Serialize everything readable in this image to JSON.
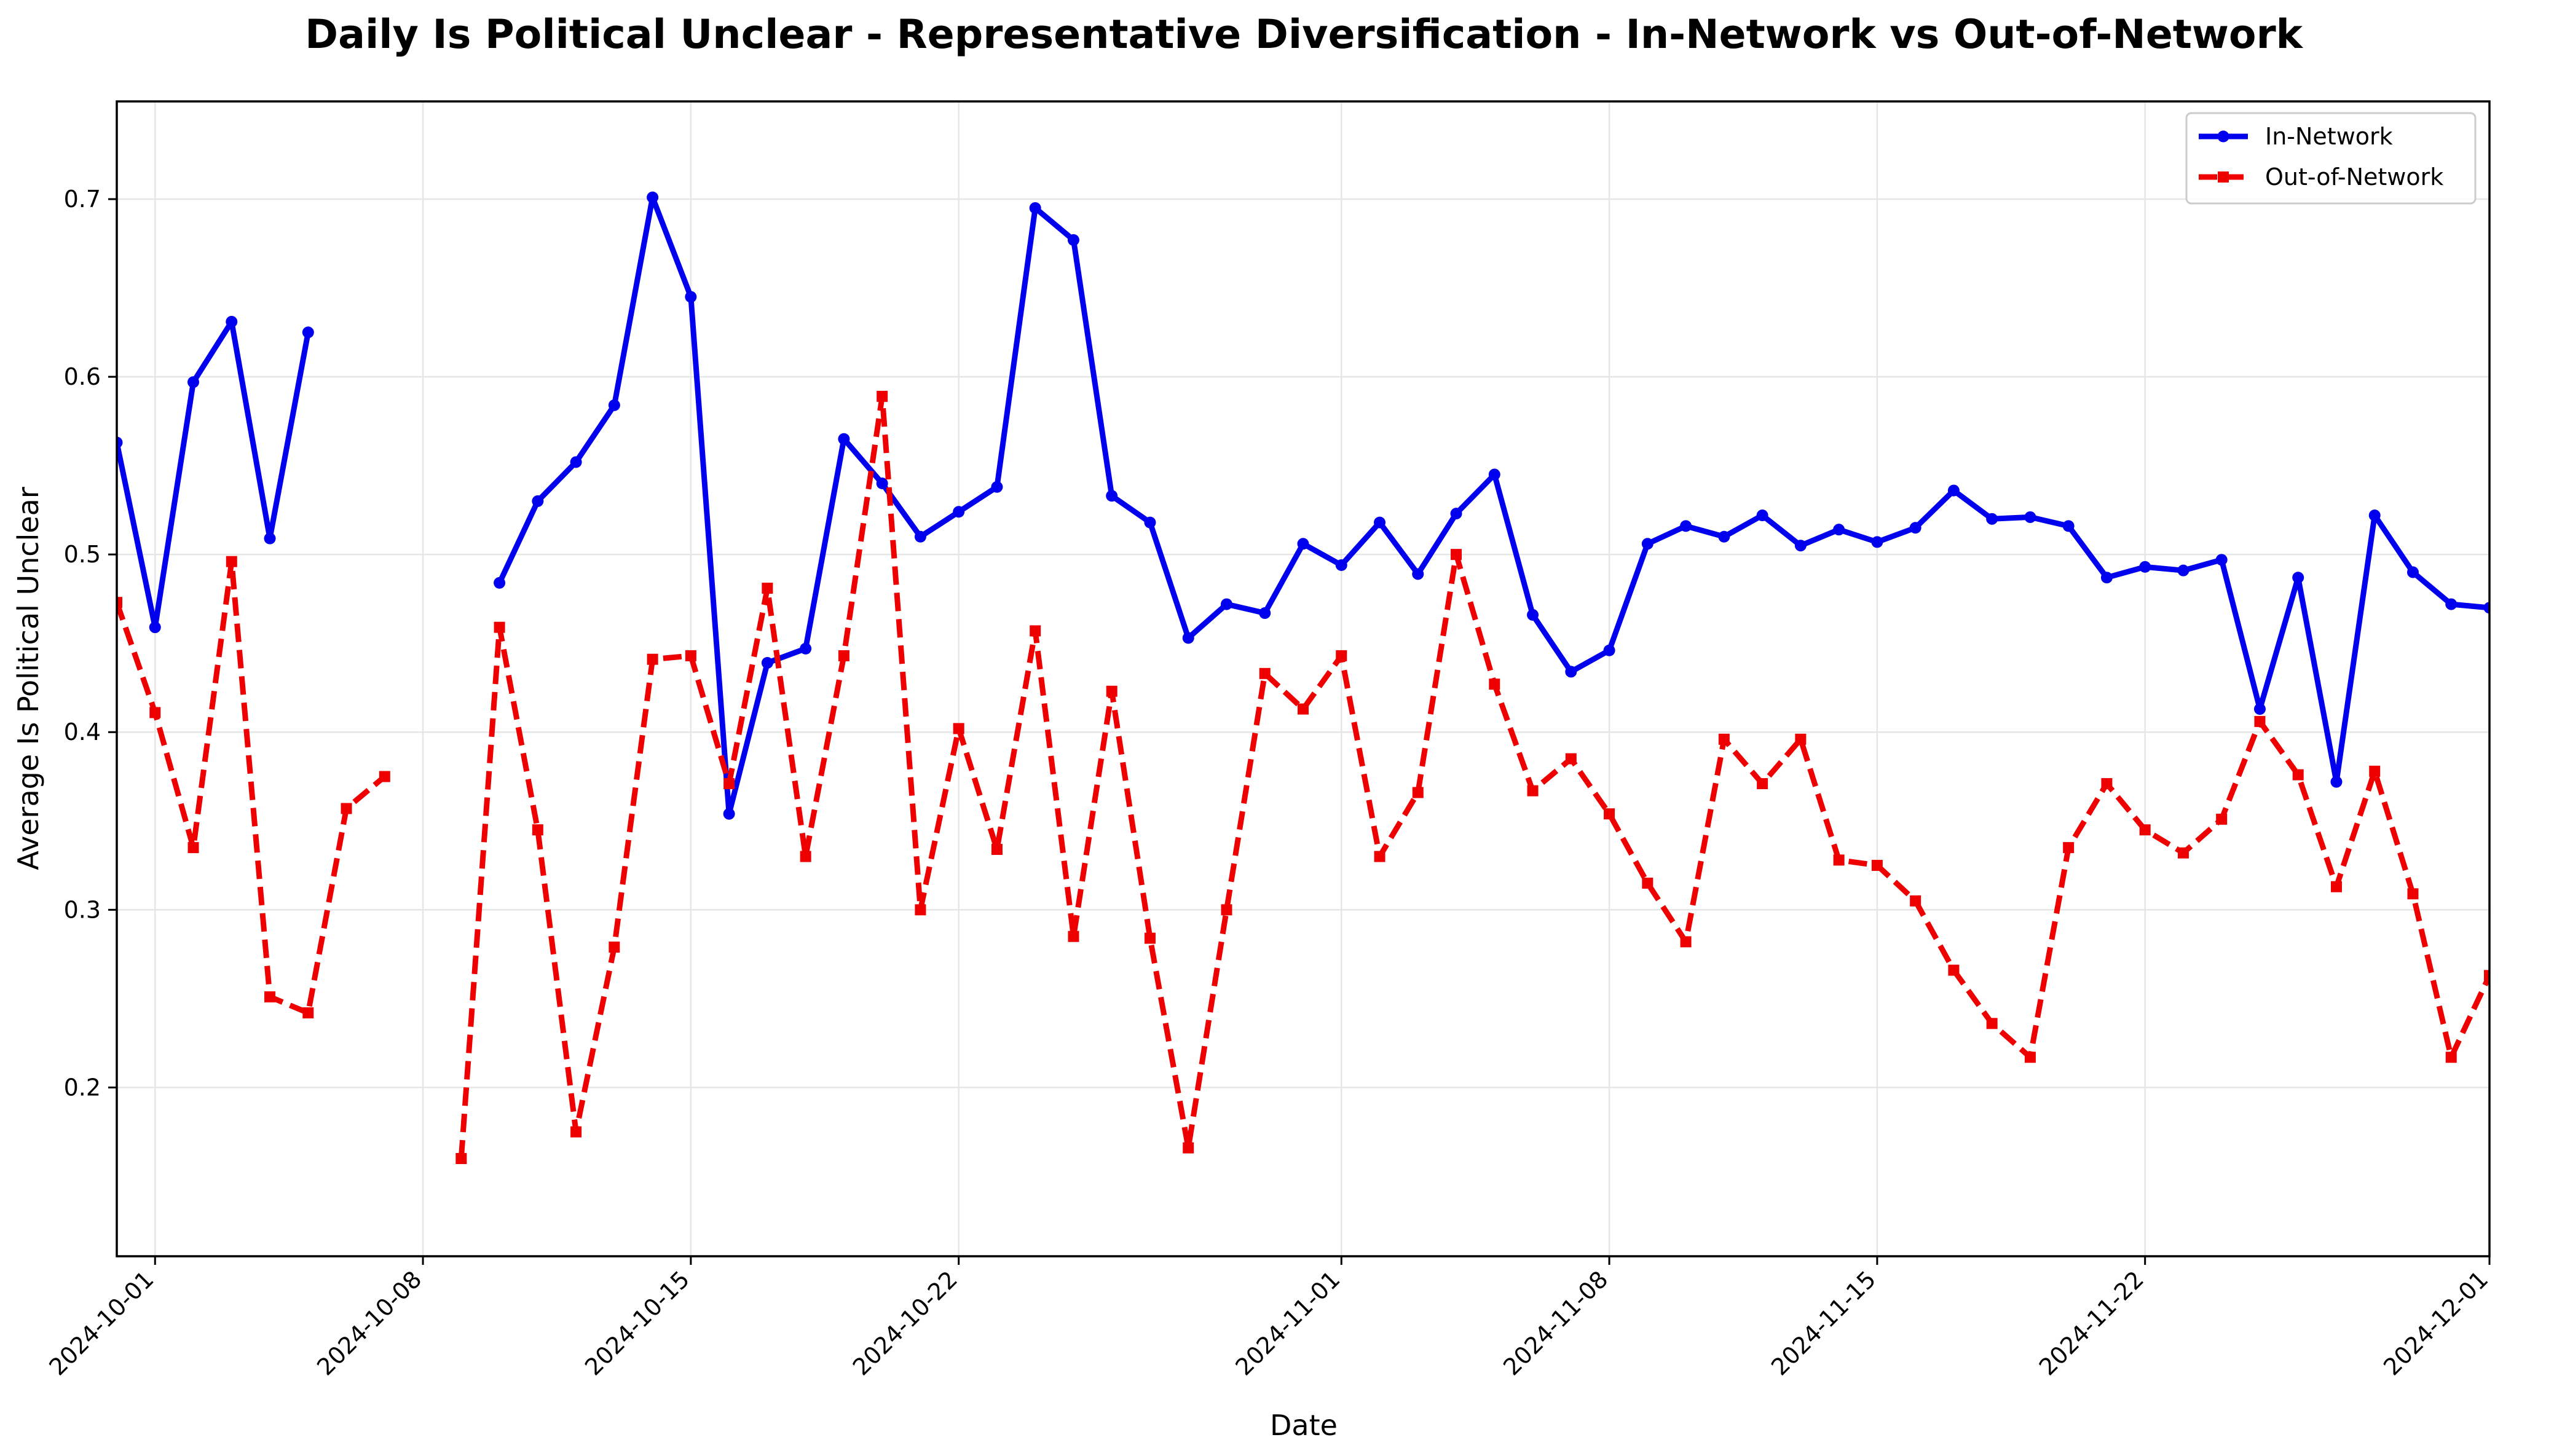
{
  "chart_data": {
    "type": "line",
    "title": "Daily Is Political Unclear - Representative Diversification - In-Network vs Out-of-Network",
    "xlabel": "Date",
    "ylabel": "Average Is Political Unclear",
    "x_start": "2024-09-30",
    "xlim": [
      "2024-09-30",
      "2024-12-01"
    ],
    "ylim": [
      0.105,
      0.755
    ],
    "x_ticks": [
      "2024-10-01",
      "2024-10-08",
      "2024-10-15",
      "2024-10-22",
      "2024-11-01",
      "2024-11-08",
      "2024-11-15",
      "2024-11-22",
      "2024-12-01"
    ],
    "y_ticks": [
      "0.2",
      "0.3",
      "0.4",
      "0.5",
      "0.6",
      "0.7"
    ],
    "grid": true,
    "legend_position": "upper right",
    "series": [
      {
        "name": "In-Network",
        "color": "#0000ee",
        "style": "solid",
        "marker": "circle",
        "values": [
          0.563,
          0.459,
          0.597,
          0.631,
          0.509,
          0.625,
          null,
          null,
          null,
          null,
          0.484,
          0.53,
          0.552,
          0.584,
          0.701,
          0.645,
          0.354,
          0.439,
          0.447,
          0.565,
          0.54,
          0.51,
          0.524,
          0.538,
          0.695,
          0.677,
          0.533,
          0.518,
          0.453,
          0.472,
          0.467,
          0.506,
          0.494,
          0.518,
          0.489,
          0.523,
          0.545,
          0.466,
          0.434,
          0.446,
          0.506,
          0.516,
          0.51,
          0.522,
          0.505,
          0.514,
          0.507,
          0.515,
          0.536,
          0.52,
          0.521,
          0.516,
          0.487,
          0.493,
          0.491,
          0.497,
          0.413,
          0.487,
          0.372,
          0.522,
          0.49,
          0.472,
          0.47
        ]
      },
      {
        "name": "Out-of-Network",
        "color": "#ee0000",
        "style": "dashed",
        "marker": "square",
        "values": [
          0.473,
          0.411,
          0.335,
          0.496,
          0.251,
          0.242,
          0.357,
          0.375,
          null,
          0.16,
          0.459,
          0.345,
          0.175,
          0.279,
          0.441,
          0.443,
          0.371,
          0.481,
          0.33,
          0.443,
          0.589,
          0.3,
          0.402,
          0.334,
          0.457,
          0.285,
          0.423,
          0.284,
          0.166,
          0.3,
          0.433,
          0.413,
          0.443,
          0.33,
          0.366,
          0.5,
          0.427,
          0.367,
          0.385,
          0.354,
          0.315,
          0.282,
          0.396,
          0.371,
          0.396,
          0.328,
          0.325,
          0.305,
          0.266,
          0.236,
          0.217,
          0.335,
          0.371,
          0.345,
          0.332,
          0.351,
          0.406,
          0.376,
          0.313,
          0.378,
          0.309,
          0.217,
          0.263
        ]
      }
    ]
  }
}
